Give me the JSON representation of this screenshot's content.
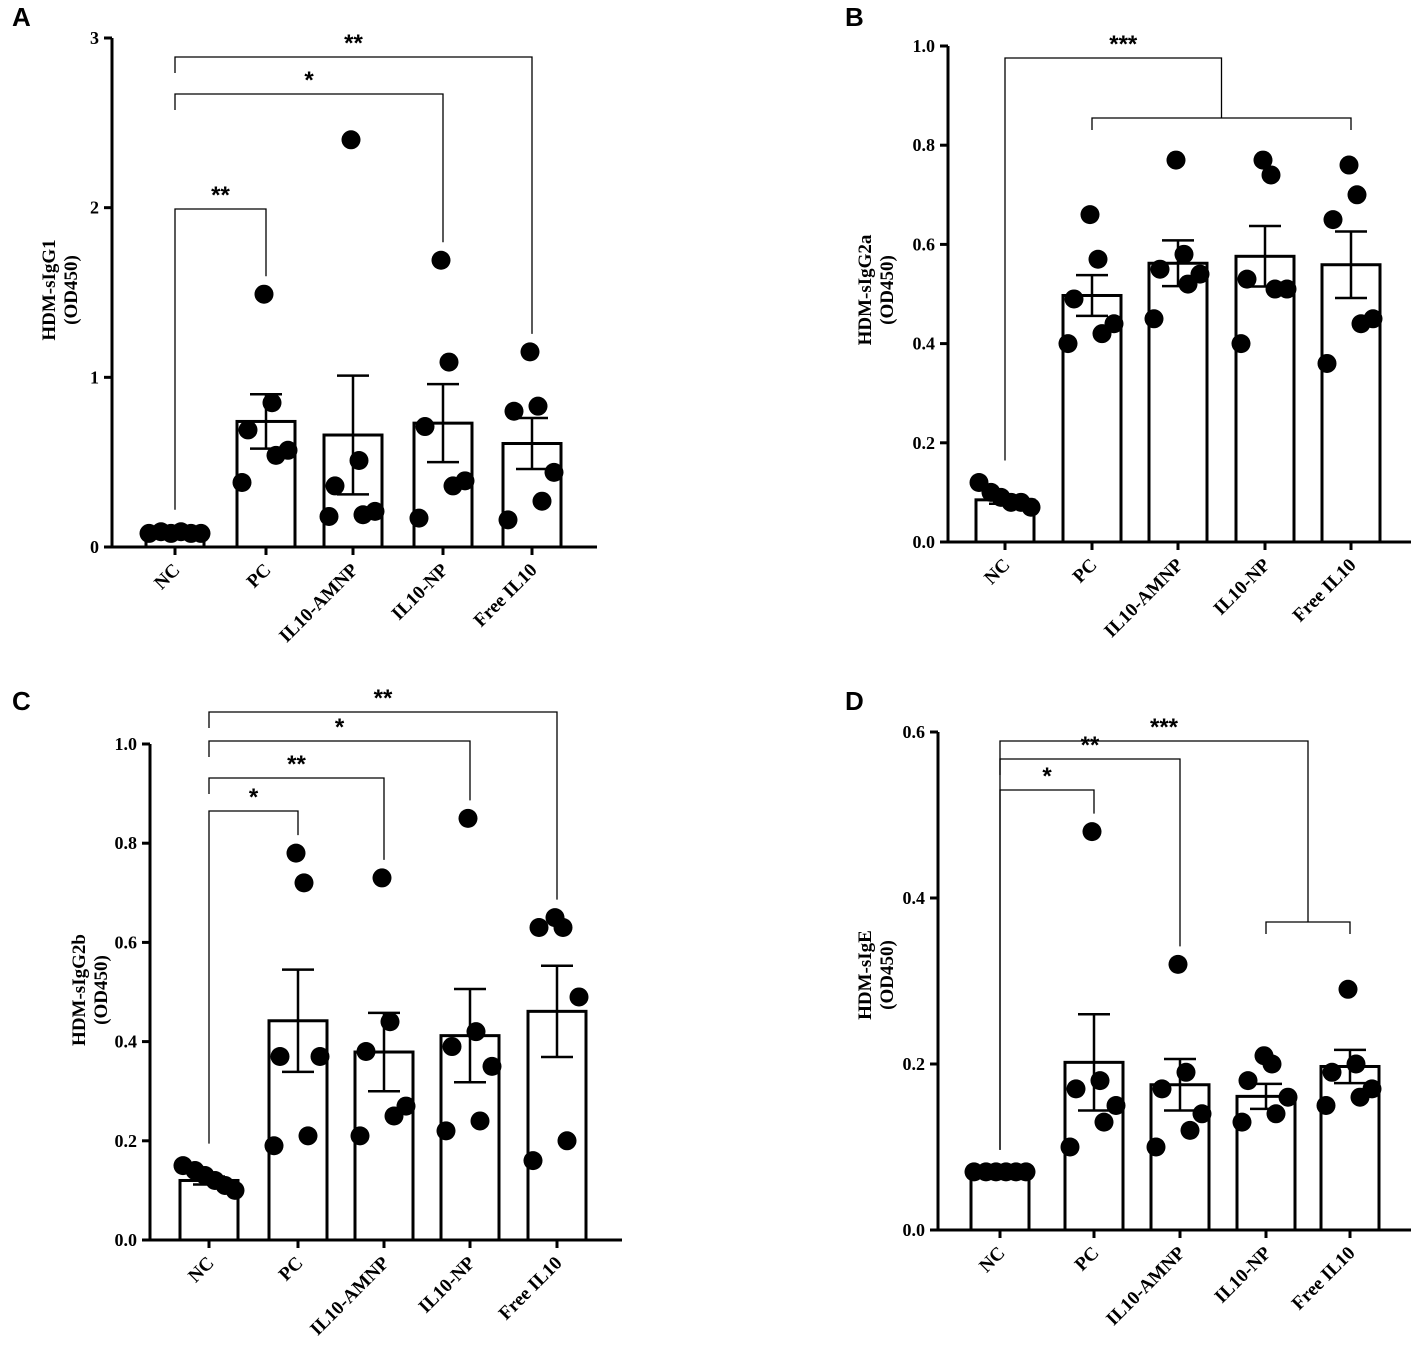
{
  "chart_data": [
    {
      "panel": "A",
      "type": "bar",
      "ylabel": [
        "HDM-sIgG1",
        "(OD450)"
      ],
      "ylim": [
        0,
        3
      ],
      "yticks": [
        "0",
        "1",
        "2",
        "3"
      ],
      "categories": [
        "NC",
        "PC",
        "IL10-AMNP",
        "IL10-NP",
        "Free IL10"
      ],
      "means": [
        0.08,
        0.74,
        0.66,
        0.73,
        0.61
      ],
      "sem": [
        0.01,
        0.16,
        0.35,
        0.23,
        0.15
      ],
      "points": [
        [
          0.08,
          0.09,
          0.08,
          0.09,
          0.08,
          0.08
        ],
        [
          1.49,
          0.85,
          0.69,
          0.57,
          0.54,
          0.38
        ],
        [
          2.4,
          0.51,
          0.36,
          0.21,
          0.19,
          0.18
        ],
        [
          1.69,
          1.09,
          0.71,
          0.39,
          0.36,
          0.17
        ],
        [
          1.15,
          0.83,
          0.8,
          0.44,
          0.27,
          0.16
        ]
      ],
      "comparisons": [
        {
          "from": 0,
          "to": [
            1
          ],
          "label": "**"
        },
        {
          "from": 0,
          "to": [
            3
          ],
          "label": "*"
        },
        {
          "from": 0,
          "to": [
            4
          ],
          "label": "**"
        }
      ]
    },
    {
      "panel": "B",
      "type": "bar",
      "ylabel": [
        "HDM-sIgG2a",
        "(OD450)"
      ],
      "ylim": [
        0,
        1.0
      ],
      "yticks": [
        "0.0",
        "0.2",
        "0.4",
        "0.6",
        "0.8",
        "1.0"
      ],
      "categories": [
        "NC",
        "PC",
        "IL10-AMNP",
        "IL10-NP",
        "Free IL10"
      ],
      "means": [
        0.085,
        0.497,
        0.562,
        0.576,
        0.559
      ],
      "sem": [
        0.008,
        0.041,
        0.046,
        0.061,
        0.067
      ],
      "points": [
        [
          0.12,
          0.1,
          0.09,
          0.08,
          0.08,
          0.07
        ],
        [
          0.66,
          0.57,
          0.49,
          0.44,
          0.42,
          0.4
        ],
        [
          0.77,
          0.58,
          0.55,
          0.54,
          0.52,
          0.45
        ],
        [
          0.77,
          0.74,
          0.53,
          0.51,
          0.51,
          0.4
        ],
        [
          0.76,
          0.7,
          0.65,
          0.45,
          0.44,
          0.36
        ]
      ],
      "comparisons": [
        {
          "from": 0,
          "to": [
            1,
            2,
            3,
            4
          ],
          "label": "***"
        }
      ]
    },
    {
      "panel": "C",
      "type": "bar",
      "ylabel": [
        "HDM-sIgG2b",
        "(OD450)"
      ],
      "ylim": [
        0,
        1.0
      ],
      "yticks": [
        "0.0",
        "0.2",
        "0.4",
        "0.6",
        "0.8",
        "1.0"
      ],
      "categories": [
        "NC",
        "PC",
        "IL10-AMNP",
        "IL10-NP",
        "Free IL10"
      ],
      "means": [
        0.12,
        0.442,
        0.379,
        0.412,
        0.461
      ],
      "sem": [
        0.008,
        0.103,
        0.079,
        0.094,
        0.092
      ],
      "points": [
        [
          0.15,
          0.14,
          0.13,
          0.12,
          0.11,
          0.1
        ],
        [
          0.78,
          0.72,
          0.37,
          0.37,
          0.21,
          0.19
        ],
        [
          0.73,
          0.44,
          0.38,
          0.27,
          0.25,
          0.21
        ],
        [
          0.85,
          0.42,
          0.39,
          0.35,
          0.24,
          0.22
        ],
        [
          0.65,
          0.63,
          0.63,
          0.49,
          0.2,
          0.16
        ]
      ],
      "comparisons": [
        {
          "from": 0,
          "to": [
            1
          ],
          "label": "*"
        },
        {
          "from": 0,
          "to": [
            2
          ],
          "label": "**"
        },
        {
          "from": 0,
          "to": [
            3
          ],
          "label": "*"
        },
        {
          "from": 0,
          "to": [
            4
          ],
          "label": "**"
        }
      ]
    },
    {
      "panel": "D",
      "type": "bar",
      "ylabel": [
        "HDM-sIgE",
        "(OD450)"
      ],
      "ylim": [
        0,
        0.6
      ],
      "yticks": [
        "0.0",
        "0.2",
        "0.4",
        "0.6"
      ],
      "categories": [
        "NC",
        "PC",
        "IL10-AMNP",
        "IL10-NP",
        "Free IL10"
      ],
      "means": [
        0.069,
        0.202,
        0.175,
        0.161,
        0.197
      ],
      "sem": [
        0.002,
        0.058,
        0.031,
        0.015,
        0.02
      ],
      "points": [
        [
          0.07,
          0.07,
          0.07,
          0.07,
          0.07,
          0.07
        ],
        [
          0.48,
          0.18,
          0.17,
          0.15,
          0.13,
          0.1
        ],
        [
          0.32,
          0.19,
          0.17,
          0.14,
          0.12,
          0.1
        ],
        [
          0.21,
          0.2,
          0.18,
          0.16,
          0.14,
          0.13
        ],
        [
          0.29,
          0.2,
          0.19,
          0.17,
          0.16,
          0.15
        ]
      ],
      "comparisons": [
        {
          "from": 0,
          "to": [
            1
          ],
          "label": "*"
        },
        {
          "from": 0,
          "to": [
            2
          ],
          "label": "**"
        },
        {
          "from": 0,
          "to": [
            3,
            4
          ],
          "label": "***"
        }
      ]
    }
  ]
}
